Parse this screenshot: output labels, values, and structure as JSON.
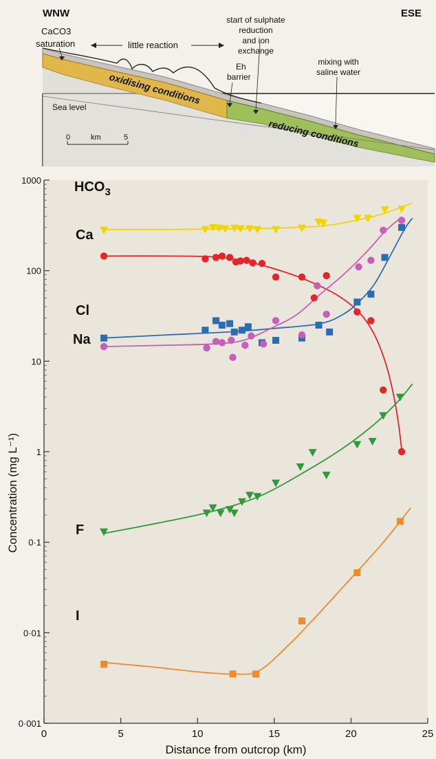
{
  "cross_section": {
    "direction_left": "WNW",
    "direction_right": "ESE",
    "label_caco3": "CaCO3",
    "label_saturation": "saturation",
    "label_little_reaction": "little reaction",
    "label_sulphate_1": "start of sulphate",
    "label_sulphate_2": "reduction",
    "label_sulphate_3": "and ion",
    "label_sulphate_4": "exchange",
    "label_eh_1": "Eh",
    "label_eh_2": "barrier",
    "label_mixing_1": "mixing with",
    "label_mixing_2": "saline water",
    "label_sea_level": "Sea level",
    "label_oxidising": "oxidising conditions",
    "label_reducing": "reducing conditions",
    "scale_0": "0",
    "scale_unit": "km",
    "scale_5": "5",
    "colors": {
      "oxidising": "#e0b84a",
      "reducing": "#9fbf5a",
      "cover": "#b9b3ab"
    }
  },
  "chart_data": {
    "type": "scatter",
    "xlabel": "Distance from outcrop (km)",
    "ylabel": "Concentration (mg L⁻¹)",
    "xlim": [
      0,
      25
    ],
    "ylim": [
      0.001,
      1000
    ],
    "yscale": "log",
    "x_ticks": [
      0,
      5,
      10,
      15,
      20,
      25
    ],
    "x_tick_labels": [
      "0",
      "5",
      "10",
      "15",
      "20",
      "25"
    ],
    "y_ticks": [
      0.001,
      0.01,
      0.1,
      1,
      10,
      100,
      1000
    ],
    "y_tick_labels": [
      "0·001",
      "0·01",
      "0·1",
      "1",
      "10",
      "100",
      "1000"
    ],
    "grid": false,
    "series": [
      {
        "name": "HCO3",
        "label_base": "HCO",
        "label_sub": "3",
        "color": "#f1d400",
        "marker": "triangle-down",
        "points": [
          [
            3.9,
            280
          ],
          [
            10.5,
            285
          ],
          [
            11.0,
            300
          ],
          [
            11.4,
            295
          ],
          [
            11.8,
            290
          ],
          [
            12.4,
            295
          ],
          [
            12.8,
            290
          ],
          [
            13.4,
            290
          ],
          [
            13.9,
            285
          ],
          [
            15.1,
            285
          ],
          [
            16.8,
            295
          ],
          [
            17.9,
            345
          ],
          [
            18.2,
            335
          ],
          [
            20.4,
            380
          ],
          [
            21.1,
            380
          ],
          [
            22.2,
            470
          ],
          [
            23.3,
            480
          ]
        ],
        "curve": [
          [
            3.9,
            285
          ],
          [
            8,
            285
          ],
          [
            12,
            290
          ],
          [
            15,
            295
          ],
          [
            18,
            310
          ],
          [
            20,
            350
          ],
          [
            22,
            420
          ],
          [
            24,
            560
          ]
        ]
      },
      {
        "name": "Ca",
        "label_base": "Ca",
        "label_sub": "",
        "color": "#e3262a",
        "marker": "circle",
        "points": [
          [
            3.9,
            145
          ],
          [
            10.5,
            135
          ],
          [
            11.2,
            140
          ],
          [
            11.6,
            145
          ],
          [
            12.1,
            140
          ],
          [
            12.5,
            125
          ],
          [
            12.8,
            128
          ],
          [
            13.2,
            130
          ],
          [
            13.6,
            122
          ],
          [
            14.2,
            120
          ],
          [
            15.1,
            85
          ],
          [
            16.8,
            85
          ],
          [
            17.6,
            50
          ],
          [
            18.4,
            88
          ],
          [
            20.4,
            35
          ],
          [
            21.3,
            28
          ],
          [
            22.1,
            4.8
          ],
          [
            23.3,
            1.0
          ]
        ],
        "curve": [
          [
            3.9,
            145
          ],
          [
            8,
            145
          ],
          [
            11,
            142
          ],
          [
            13,
            128
          ],
          [
            15,
            105
          ],
          [
            17,
            80
          ],
          [
            19,
            55
          ],
          [
            20.5,
            35
          ],
          [
            21.5,
            20
          ],
          [
            22.3,
            9
          ],
          [
            22.8,
            4
          ],
          [
            23.1,
            2
          ],
          [
            23.3,
            1.05
          ]
        ]
      },
      {
        "name": "Cl",
        "label_base": "Cl",
        "label_sub": "",
        "color": "#2b6db5",
        "marker": "square",
        "points": [
          [
            3.9,
            18
          ],
          [
            10.5,
            22
          ],
          [
            11.2,
            28
          ],
          [
            11.6,
            25
          ],
          [
            12.1,
            26
          ],
          [
            12.4,
            21
          ],
          [
            12.9,
            22
          ],
          [
            13.3,
            24
          ],
          [
            14.2,
            16
          ],
          [
            15.1,
            17
          ],
          [
            16.8,
            18
          ],
          [
            17.9,
            25
          ],
          [
            18.6,
            21
          ],
          [
            20.4,
            45
          ],
          [
            21.3,
            55
          ],
          [
            22.2,
            140
          ],
          [
            23.3,
            300
          ]
        ],
        "curve": [
          [
            3.9,
            18
          ],
          [
            8,
            19.5
          ],
          [
            12,
            21
          ],
          [
            15,
            23
          ],
          [
            18,
            26
          ],
          [
            19.5,
            33
          ],
          [
            20.5,
            45
          ],
          [
            21.5,
            70
          ],
          [
            22.5,
            140
          ],
          [
            23.5,
            290
          ],
          [
            24,
            380
          ]
        ]
      },
      {
        "name": "Na",
        "label_base": "Na",
        "label_sub": "",
        "color": "#c65fb8",
        "marker": "circle",
        "points": [
          [
            3.9,
            14.5
          ],
          [
            10.6,
            14
          ],
          [
            11.2,
            16.5
          ],
          [
            11.6,
            16
          ],
          [
            12.2,
            17
          ],
          [
            12.3,
            11
          ],
          [
            13.1,
            15
          ],
          [
            13.5,
            19
          ],
          [
            14.3,
            15.5
          ],
          [
            15.1,
            28
          ],
          [
            16.8,
            19.5
          ],
          [
            17.8,
            68
          ],
          [
            18.4,
            33
          ],
          [
            20.5,
            110
          ],
          [
            21.3,
            130
          ],
          [
            22.1,
            280
          ],
          [
            23.3,
            360
          ]
        ],
        "curve": [
          [
            3.9,
            14.5
          ],
          [
            8,
            15
          ],
          [
            11,
            15.5
          ],
          [
            13,
            17
          ],
          [
            15,
            24
          ],
          [
            16.5,
            33
          ],
          [
            18,
            55
          ],
          [
            19.5,
            90
          ],
          [
            21,
            160
          ],
          [
            22.3,
            280
          ],
          [
            23.3,
            390
          ]
        ]
      },
      {
        "name": "F",
        "label_base": "F",
        "label_sub": "",
        "color": "#2f9a3a",
        "marker": "triangle-down",
        "points": [
          [
            3.9,
            0.13
          ],
          [
            10.6,
            0.21
          ],
          [
            11.0,
            0.24
          ],
          [
            11.5,
            0.21
          ],
          [
            12.1,
            0.23
          ],
          [
            12.4,
            0.21
          ],
          [
            12.9,
            0.28
          ],
          [
            13.4,
            0.33
          ],
          [
            13.9,
            0.32
          ],
          [
            15.1,
            0.45
          ],
          [
            16.7,
            0.68
          ],
          [
            17.5,
            0.98
          ],
          [
            18.4,
            0.55
          ],
          [
            20.4,
            1.2
          ],
          [
            21.4,
            1.3
          ],
          [
            22.1,
            2.5
          ],
          [
            23.2,
            4.0
          ]
        ],
        "curve": [
          [
            3.9,
            0.125
          ],
          [
            8,
            0.17
          ],
          [
            11,
            0.22
          ],
          [
            14,
            0.32
          ],
          [
            17,
            0.6
          ],
          [
            19.5,
            1.1
          ],
          [
            21.5,
            2.0
          ],
          [
            23,
            3.5
          ],
          [
            24,
            5.6
          ]
        ]
      },
      {
        "name": "I",
        "label_base": "I",
        "label_sub": "",
        "color": "#ef8b2c",
        "marker": "square",
        "points": [
          [
            3.9,
            0.0045
          ],
          [
            12.3,
            0.0035
          ],
          [
            13.8,
            0.0035
          ],
          [
            16.8,
            0.0135
          ],
          [
            20.4,
            0.046
          ],
          [
            23.2,
            0.17
          ]
        ],
        "curve": [
          [
            3.9,
            0.0047
          ],
          [
            7,
            0.0042
          ],
          [
            10,
            0.0037
          ],
          [
            12.3,
            0.0035
          ],
          [
            14,
            0.0038
          ],
          [
            16,
            0.0075
          ],
          [
            18,
            0.017
          ],
          [
            20,
            0.04
          ],
          [
            22,
            0.095
          ],
          [
            23.9,
            0.24
          ]
        ]
      }
    ]
  }
}
